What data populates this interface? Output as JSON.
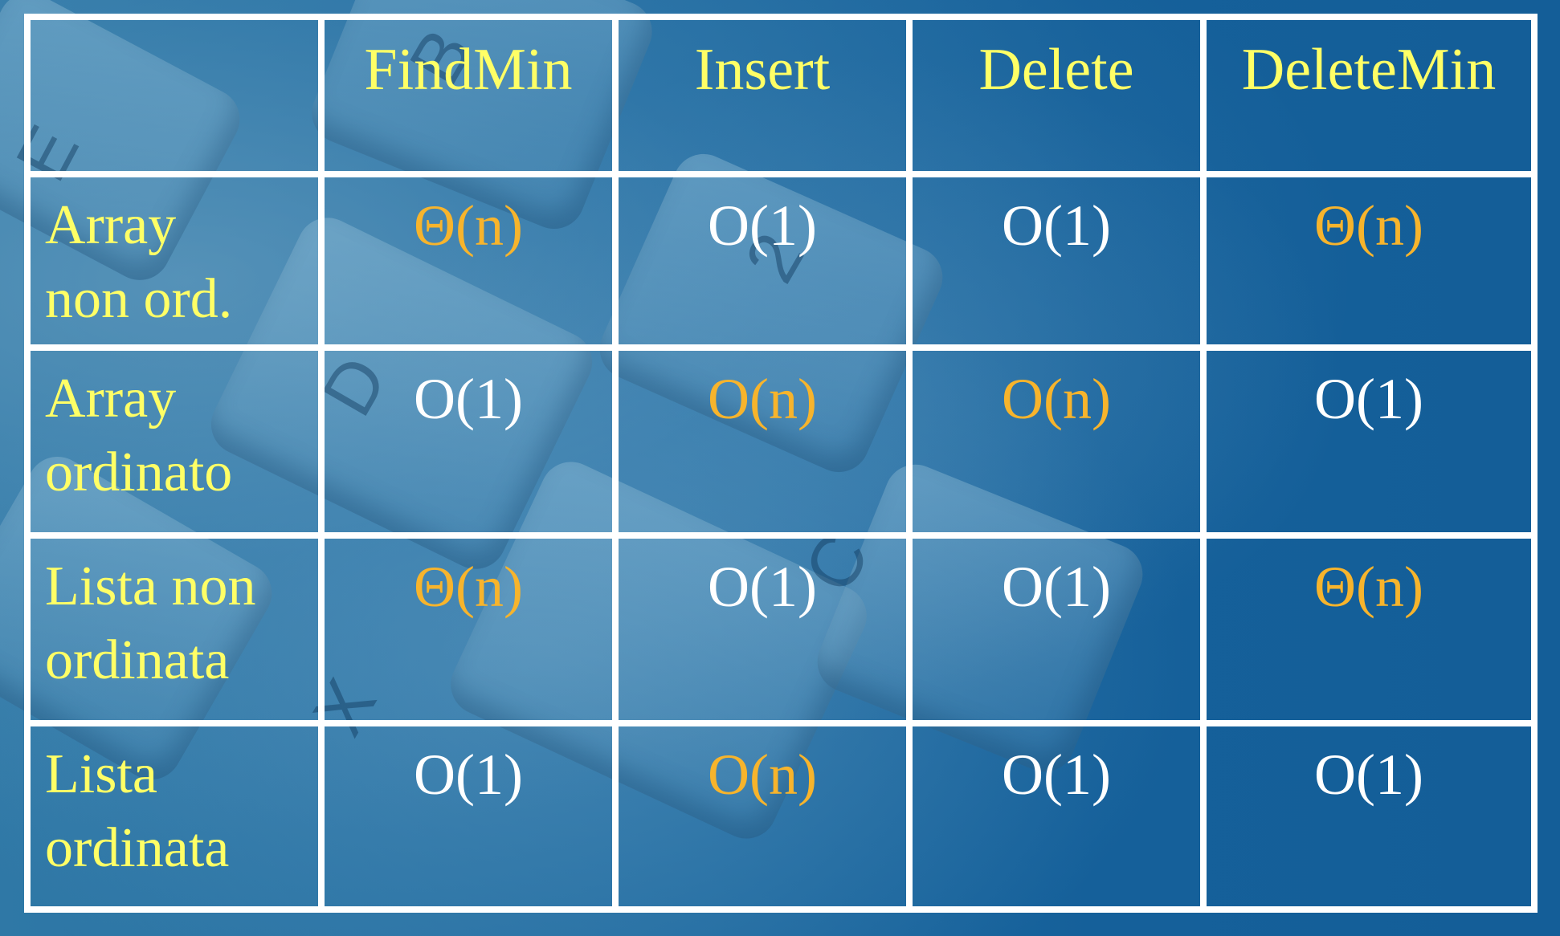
{
  "table": {
    "columns": [
      "",
      "FindMin",
      "Insert",
      "Delete",
      "DeleteMin"
    ],
    "rows": [
      {
        "label": "Array non ord.",
        "label_lines": [
          "Array",
          "non ord."
        ],
        "cells": [
          {
            "text": "Θ(n)",
            "highlight": true
          },
          {
            "text": "O(1)",
            "highlight": false
          },
          {
            "text": "O(1)",
            "highlight": false
          },
          {
            "text": "Θ(n)",
            "highlight": true
          }
        ]
      },
      {
        "label": "Array ordinato",
        "label_lines": [
          "Array",
          "ordinato"
        ],
        "cells": [
          {
            "text": "O(1)",
            "highlight": false
          },
          {
            "text": "O(n)",
            "highlight": true
          },
          {
            "text": "O(n)",
            "highlight": true
          },
          {
            "text": "O(1)",
            "highlight": false
          }
        ]
      },
      {
        "label": "Lista non ordinata",
        "label_lines": [
          "Lista non",
          "ordinata"
        ],
        "cells": [
          {
            "text": "Θ(n)",
            "highlight": true
          },
          {
            "text": "O(1)",
            "highlight": false
          },
          {
            "text": "O(1)",
            "highlight": false
          },
          {
            "text": "Θ(n)",
            "highlight": true
          }
        ]
      },
      {
        "label": "Lista ordinata",
        "label_lines": [
          "Lista",
          "ordinata"
        ],
        "cells": [
          {
            "text": "O(1)",
            "highlight": false
          },
          {
            "text": "O(n)",
            "highlight": true
          },
          {
            "text": "O(1)",
            "highlight": false
          },
          {
            "text": "O(1)",
            "highlight": false
          }
        ]
      }
    ]
  },
  "colors": {
    "background": "#15609a",
    "grid": "#ffffff",
    "header_text": "#ffff66",
    "value_text": "#ffffff",
    "highlight_text": "#f7b42c"
  },
  "background_keys": [
    "E",
    "B",
    "D",
    "C",
    "X",
    "2"
  ]
}
